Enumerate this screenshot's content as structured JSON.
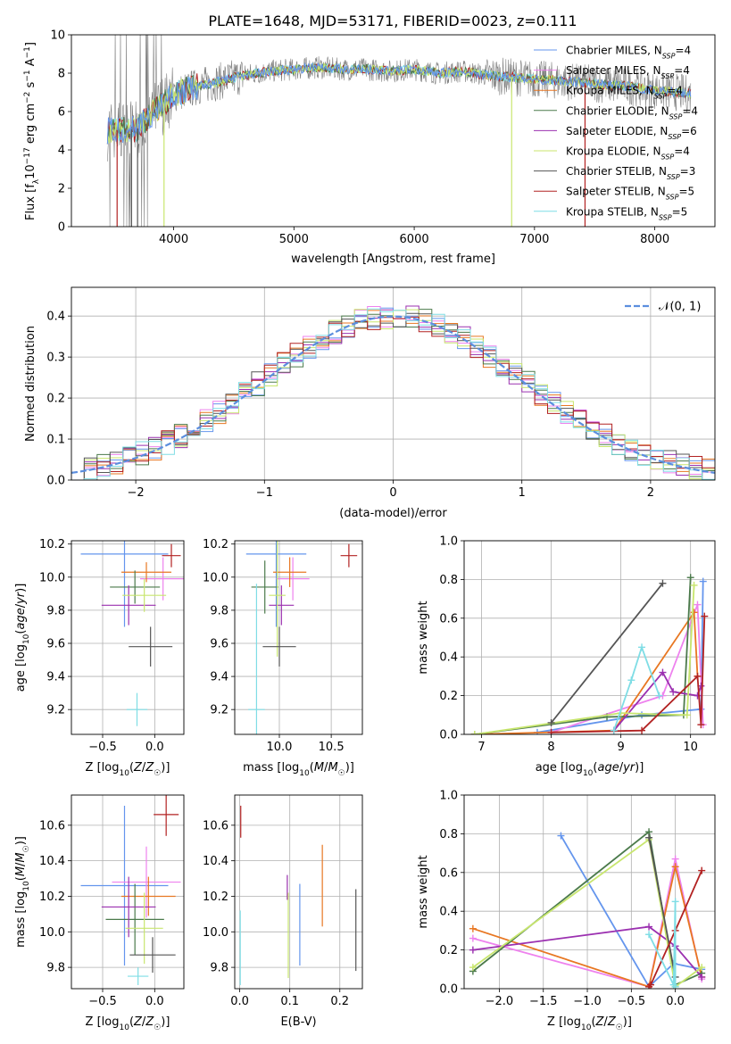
{
  "title": "PLATE=1648, MJD=53171, FIBERID=0023, z=0.111",
  "colors": {
    "grid": "#b0b0b0",
    "chabrier_miles": "#6495ed",
    "salpeter_miles": "#ee82ee",
    "kroupa_miles": "#e87722",
    "chabrier_elodie": "#4b7a4b",
    "salpeter_elodie": "#9b30b0",
    "kroupa_elodie": "#c8e66e",
    "chabrier_stelib": "#555555",
    "salpeter_stelib": "#b22222",
    "kroupa_stelib": "#7fdde5"
  },
  "chart_data": [
    {
      "id": "spectrum",
      "type": "line",
      "xlabel": "wavelength [Angstrom, rest frame]",
      "ylabel": "Flux [f$_\\lambda$10$^{-17}$ erg cm$^{-2}$ s$^{-1}$ A$^{-1}$]",
      "xlim": [
        3150,
        8500
      ],
      "ylim": [
        0,
        10
      ],
      "xticks": [
        4000,
        5000,
        6000,
        7000,
        8000
      ],
      "yticks": [
        0,
        2,
        4,
        6,
        8,
        10
      ],
      "grid": false,
      "legend_position": "top-right",
      "legend": [
        {
          "label": "Chabrier MILES, N",
          "sub": "SSP",
          "tail": "=4",
          "color_key": "chabrier_miles"
        },
        {
          "label": "Salpeter MILES, N",
          "sub": "SSP",
          "tail": "=4",
          "color_key": "salpeter_miles"
        },
        {
          "label": "Kroupa MILES, N",
          "sub": "SSP",
          "tail": "=4",
          "color_key": "kroupa_miles"
        },
        {
          "label": "Chabrier ELODIE, N",
          "sub": "SSP",
          "tail": "=4",
          "color_key": "chabrier_elodie"
        },
        {
          "label": "Salpeter ELODIE, N",
          "sub": "SSP",
          "tail": "=6",
          "color_key": "salpeter_elodie"
        },
        {
          "label": "Kroupa ELODIE, N",
          "sub": "SSP",
          "tail": "=4",
          "color_key": "kroupa_elodie"
        },
        {
          "label": "Chabrier STELIB, N",
          "sub": "SSP",
          "tail": "=3",
          "color_key": "chabrier_stelib"
        },
        {
          "label": "Salpeter STELIB, N",
          "sub": "SSP",
          "tail": "=5",
          "color_key": "salpeter_stelib"
        },
        {
          "label": "Kroupa STELIB, N",
          "sub": "SSP",
          "tail": "=5",
          "color_key": "kroupa_stelib"
        }
      ],
      "continuum": {
        "x": [
          3450,
          3700,
          3800,
          3900,
          4000,
          4200,
          4400,
          4600,
          4800,
          5000,
          5200,
          5400,
          5600,
          5800,
          6000,
          6200,
          6400,
          6600,
          6800,
          7000,
          7200,
          7400,
          7600,
          7800,
          8000,
          8200,
          8300
        ],
        "y": [
          5.0,
          5.1,
          5.8,
          6.3,
          6.9,
          7.3,
          7.6,
          7.9,
          8.1,
          8.2,
          8.3,
          8.2,
          8.2,
          8.1,
          8.2,
          8.0,
          8.1,
          7.9,
          7.8,
          7.7,
          7.6,
          7.5,
          7.4,
          7.3,
          7.1,
          7.0,
          6.9
        ]
      },
      "drops": [
        {
          "x": 3530,
          "color_key": "salpeter_stelib"
        },
        {
          "x": 3650,
          "color_key": "chabrier_stelib"
        },
        {
          "x": 3700,
          "color_key": "chabrier_stelib"
        },
        {
          "x": 3920,
          "color_key": "kroupa_elodie"
        },
        {
          "x": 6810,
          "color_key": "kroupa_elodie"
        },
        {
          "x": 7420,
          "color_key": "salpeter_stelib"
        }
      ]
    },
    {
      "id": "residuals",
      "type": "histogram",
      "xlabel": "(data-model)/error",
      "ylabel": "Normed distribution",
      "xlim": [
        -2.5,
        2.5
      ],
      "ylim": [
        0,
        0.47
      ],
      "xticks": [
        -2,
        -1,
        0,
        1,
        2
      ],
      "yticks": [
        0.0,
        0.1,
        0.2,
        0.3,
        0.4
      ],
      "grid": true,
      "legend_position": "top-right",
      "gaussian_label": "N(0,1)",
      "bin_width": 0.1
    },
    {
      "id": "age_vs_Z",
      "type": "scatter",
      "xlabel": "Z [log10(Z/Z☉)]",
      "ylabel": "age  [log10(age/yr)]",
      "xlim": [
        -0.8,
        0.28
      ],
      "ylim": [
        9.05,
        10.22
      ],
      "xticks": [
        -0.5,
        0.0
      ],
      "yticks": [
        9.2,
        9.4,
        9.6,
        9.8,
        10.0,
        10.2
      ],
      "grid": true,
      "points": [
        {
          "x": -0.29,
          "y": 10.14,
          "xerr": 0.42,
          "yerr": 0.44,
          "color_key": "chabrier_miles"
        },
        {
          "x": 0.08,
          "y": 9.99,
          "xerr": 0.22,
          "yerr": 0.13,
          "color_key": "salpeter_miles"
        },
        {
          "x": -0.08,
          "y": 10.03,
          "xerr": 0.24,
          "yerr": 0.06,
          "color_key": "kroupa_miles"
        },
        {
          "x": -0.19,
          "y": 9.94,
          "xerr": 0.24,
          "yerr": 0.1,
          "color_key": "chabrier_elodie"
        },
        {
          "x": -0.25,
          "y": 9.83,
          "xerr": 0.26,
          "yerr": 0.12,
          "color_key": "salpeter_elodie"
        },
        {
          "x": -0.1,
          "y": 9.89,
          "xerr": 0.21,
          "yerr": 0.1,
          "color_key": "kroupa_elodie"
        },
        {
          "x": -0.04,
          "y": 9.58,
          "xerr": 0.21,
          "yerr": 0.12,
          "color_key": "chabrier_stelib"
        },
        {
          "x": 0.16,
          "y": 10.13,
          "xerr": 0.09,
          "yerr": 0.07,
          "color_key": "salpeter_stelib"
        },
        {
          "x": -0.17,
          "y": 9.2,
          "xerr": 0.1,
          "yerr": 0.1,
          "color_key": "kroupa_stelib"
        }
      ]
    },
    {
      "id": "age_vs_mass",
      "type": "scatter",
      "xlabel": "mass [log10(M/M☉)]",
      "ylabel": "",
      "xlim": [
        9.57,
        10.8
      ],
      "ylim": [
        9.05,
        10.22
      ],
      "xticks": [
        10.0,
        10.5
      ],
      "yticks": [
        9.2,
        9.4,
        9.6,
        9.8,
        10.0,
        10.2
      ],
      "grid": true,
      "points": [
        {
          "x": 9.97,
          "y": 10.14,
          "xerr": 0.29,
          "yerr": 0.44,
          "color_key": "chabrier_miles"
        },
        {
          "x": 10.13,
          "y": 9.99,
          "xerr": 0.16,
          "yerr": 0.13,
          "color_key": "salpeter_miles"
        },
        {
          "x": 10.1,
          "y": 10.03,
          "xerr": 0.16,
          "yerr": 0.09,
          "color_key": "kroupa_miles"
        },
        {
          "x": 9.86,
          "y": 9.94,
          "xerr": 0.13,
          "yerr": 0.16,
          "color_key": "chabrier_elodie"
        },
        {
          "x": 10.02,
          "y": 9.83,
          "xerr": 0.12,
          "yerr": 0.12,
          "color_key": "salpeter_elodie"
        },
        {
          "x": 9.98,
          "y": 9.89,
          "xerr": 0.08,
          "yerr": 0.37,
          "color_key": "kroupa_elodie"
        },
        {
          "x": 10.0,
          "y": 9.58,
          "xerr": 0.16,
          "yerr": 0.12,
          "color_key": "chabrier_stelib"
        },
        {
          "x": 10.67,
          "y": 10.13,
          "xerr": 0.08,
          "yerr": 0.07,
          "color_key": "salpeter_stelib"
        },
        {
          "x": 9.78,
          "y": 9.2,
          "xerr": 0.08,
          "yerr": 0.76,
          "color_key": "kroupa_stelib"
        }
      ]
    },
    {
      "id": "weight_vs_age",
      "type": "line",
      "xlabel": "age  [log10(age/yr)]",
      "ylabel": "mass weight",
      "xlim": [
        6.75,
        10.35
      ],
      "ylim": [
        0,
        1.0
      ],
      "xticks": [
        7,
        8,
        9,
        10
      ],
      "yticks": [
        0.0,
        0.2,
        0.4,
        0.6,
        0.8,
        1.0
      ],
      "grid": true,
      "series": [
        {
          "color_key": "chabrier_miles",
          "x": [
            7.8,
            9.3,
            10.15,
            10.18
          ],
          "y": [
            0.01,
            0.1,
            0.13,
            0.79
          ]
        },
        {
          "color_key": "salpeter_miles",
          "x": [
            8.0,
            9.6,
            10.1,
            10.18
          ],
          "y": [
            0.01,
            0.2,
            0.67,
            0.05
          ]
        },
        {
          "color_key": "kroupa_miles",
          "x": [
            6.9,
            8.9,
            10.05,
            10.1
          ],
          "y": [
            0.0,
            0.02,
            0.63,
            0.3
          ]
        },
        {
          "color_key": "chabrier_elodie",
          "x": [
            6.9,
            8.8,
            9.9,
            10.0
          ],
          "y": [
            0.0,
            0.09,
            0.1,
            0.81
          ]
        },
        {
          "color_key": "salpeter_elodie",
          "x": [
            8.9,
            9.6,
            9.75,
            10.1,
            10.15
          ],
          "y": [
            0.02,
            0.32,
            0.22,
            0.2,
            0.25
          ]
        },
        {
          "color_key": "kroupa_elodie",
          "x": [
            6.9,
            9.0,
            9.95,
            10.05
          ],
          "y": [
            0.0,
            0.11,
            0.1,
            0.77
          ]
        },
        {
          "color_key": "chabrier_stelib",
          "x": [
            8.0,
            9.6
          ],
          "y": [
            0.06,
            0.78
          ]
        },
        {
          "color_key": "salpeter_stelib",
          "x": [
            8.0,
            9.3,
            10.1,
            10.15,
            10.2
          ],
          "y": [
            0.01,
            0.02,
            0.3,
            0.05,
            0.61
          ]
        },
        {
          "color_key": "kroupa_stelib",
          "x": [
            8.9,
            9.15,
            9.3,
            9.55
          ],
          "y": [
            0.02,
            0.28,
            0.45,
            0.2
          ]
        }
      ]
    },
    {
      "id": "mass_vs_Z",
      "type": "scatter",
      "xlabel": "Z [log10(Z/Z☉)]",
      "ylabel": "mass [log10(M/M☉)]",
      "xlim": [
        -0.8,
        0.28
      ],
      "ylim": [
        9.68,
        10.77
      ],
      "xticks": [
        -0.5,
        0.0
      ],
      "yticks": [
        9.8,
        10.0,
        10.2,
        10.4,
        10.6
      ],
      "grid": true,
      "points": [
        {
          "x": -0.29,
          "y": 10.26,
          "xerr": 0.42,
          "yerr": 0.45,
          "color_key": "chabrier_miles"
        },
        {
          "x": -0.08,
          "y": 10.28,
          "xerr": 0.33,
          "yerr": 0.2,
          "color_key": "salpeter_miles"
        },
        {
          "x": -0.06,
          "y": 10.2,
          "xerr": 0.26,
          "yerr": 0.11,
          "color_key": "kroupa_miles"
        },
        {
          "x": -0.19,
          "y": 10.07,
          "xerr": 0.28,
          "yerr": 0.2,
          "color_key": "chabrier_elodie"
        },
        {
          "x": -0.25,
          "y": 10.14,
          "xerr": 0.26,
          "yerr": 0.17,
          "color_key": "salpeter_elodie"
        },
        {
          "x": -0.1,
          "y": 10.02,
          "xerr": 0.18,
          "yerr": 0.2,
          "color_key": "kroupa_elodie"
        },
        {
          "x": -0.02,
          "y": 9.87,
          "xerr": 0.22,
          "yerr": 0.1,
          "color_key": "chabrier_stelib"
        },
        {
          "x": 0.11,
          "y": 10.66,
          "xerr": 0.12,
          "yerr": 0.12,
          "color_key": "salpeter_stelib"
        },
        {
          "x": -0.16,
          "y": 9.75,
          "xerr": 0.1,
          "yerr": 0.05,
          "color_key": "kroupa_stelib"
        }
      ]
    },
    {
      "id": "mass_vs_ebv",
      "type": "scatter",
      "xlabel": "E(B-V)",
      "ylabel": "",
      "xlim": [
        -0.01,
        0.245
      ],
      "ylim": [
        9.68,
        10.77
      ],
      "xticks": [
        0.0,
        0.1,
        0.2
      ],
      "yticks": [
        9.8,
        10.0,
        10.2,
        10.4,
        10.6
      ],
      "grid": true,
      "points": [
        {
          "x": 0.12,
          "y": 10.04,
          "xerr": 0.0,
          "yerr": 0.23,
          "color_key": "chabrier_miles"
        },
        {
          "x": 0.165,
          "y": 10.26,
          "xerr": 0.0,
          "yerr": 0.23,
          "color_key": "kroupa_miles"
        },
        {
          "x": 0.095,
          "y": 10.25,
          "xerr": 0.0,
          "yerr": 0.07,
          "color_key": "salpeter_elodie"
        },
        {
          "x": 0.097,
          "y": 9.98,
          "xerr": 0.0,
          "yerr": 0.24,
          "color_key": "kroupa_elodie"
        },
        {
          "x": 0.232,
          "y": 10.01,
          "xerr": 0.0,
          "yerr": 0.23,
          "color_key": "chabrier_stelib"
        },
        {
          "x": 0.002,
          "y": 10.62,
          "xerr": 0.0,
          "yerr": 0.09,
          "color_key": "salpeter_stelib"
        },
        {
          "x": 0.001,
          "y": 9.91,
          "xerr": 0.0,
          "yerr": 0.21,
          "color_key": "kroupa_stelib"
        }
      ]
    },
    {
      "id": "weight_vs_Z",
      "type": "line",
      "xlabel": "Z [log10(Z/Z☉)]",
      "ylabel": "mass weight",
      "xlim": [
        -2.4,
        0.45
      ],
      "ylim": [
        0,
        1.0
      ],
      "xticks": [
        -2.0,
        -1.5,
        -1.0,
        -0.5,
        0.0
      ],
      "yticks": [
        0.0,
        0.2,
        0.4,
        0.6,
        0.8,
        1.0
      ],
      "grid": true,
      "series": [
        {
          "color_key": "chabrier_miles",
          "x": [
            -1.3,
            -0.3,
            -0.02,
            0.3
          ],
          "y": [
            0.79,
            0.01,
            0.13,
            0.1
          ]
        },
        {
          "color_key": "salpeter_miles",
          "x": [
            -2.3,
            -0.3,
            0.0,
            0.3
          ],
          "y": [
            0.26,
            0.01,
            0.67,
            0.05
          ]
        },
        {
          "color_key": "kroupa_miles",
          "x": [
            -2.3,
            -0.3,
            0.0,
            0.3
          ],
          "y": [
            0.31,
            0.01,
            0.63,
            0.06
          ]
        },
        {
          "color_key": "chabrier_elodie",
          "x": [
            -2.3,
            -0.3,
            0.0,
            0.3
          ],
          "y": [
            0.09,
            0.81,
            0.02,
            0.08
          ]
        },
        {
          "color_key": "salpeter_elodie",
          "x": [
            -2.3,
            -0.3,
            0.0,
            0.3
          ],
          "y": [
            0.2,
            0.32,
            0.22,
            0.06
          ]
        },
        {
          "color_key": "kroupa_elodie",
          "x": [
            -2.3,
            -0.3,
            0.0,
            0.3
          ],
          "y": [
            0.11,
            0.77,
            0.01,
            0.11
          ]
        },
        {
          "color_key": "chabrier_stelib",
          "x": [
            -0.3,
            0.0
          ],
          "y": [
            0.78,
            0.06
          ]
        },
        {
          "color_key": "salpeter_stelib",
          "x": [
            -0.3,
            -0.28,
            0.0,
            0.3
          ],
          "y": [
            0.01,
            0.02,
            0.3,
            0.61
          ]
        },
        {
          "color_key": "kroupa_stelib",
          "x": [
            -0.3,
            -0.02,
            0.0,
            0.0
          ],
          "y": [
            0.28,
            0.02,
            0.45,
            0.01
          ]
        }
      ]
    }
  ]
}
